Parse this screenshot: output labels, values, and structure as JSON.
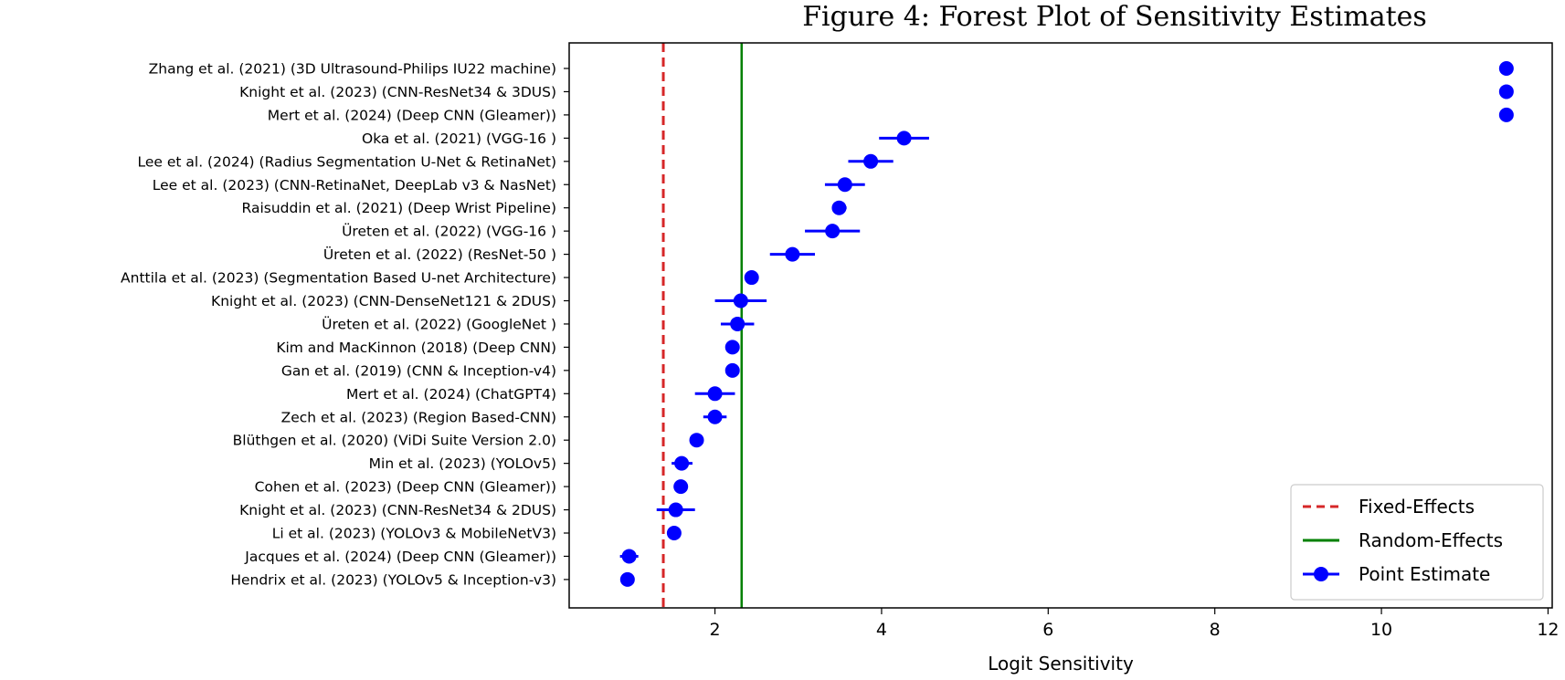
{
  "chart_data": {
    "type": "scatter",
    "title": "Figure 4: Forest Plot of Sensitivity Estimates",
    "xlabel": "Logit Sensitivity",
    "ylabel": "",
    "xlim": [
      0.25,
      12.05
    ],
    "xticks": [
      2,
      4,
      6,
      8,
      10,
      12
    ],
    "grid": false,
    "legend_position": "lower-right",
    "colors": {
      "points": "#0000ff",
      "fixed": "#d62728",
      "random": "#008000"
    },
    "fixed_effect": 1.38,
    "random_effect": 2.32,
    "legend": [
      {
        "label": "Fixed-Effects",
        "kind": "dashed-line"
      },
      {
        "label": "Random-Effects",
        "kind": "solid-line"
      },
      {
        "label": "Point Estimate",
        "kind": "point-with-errorbar"
      }
    ],
    "studies": [
      {
        "label": "Zhang et al. (2021) (3D Ultrasound-Philips IU22 machine)",
        "estimate": 11.5,
        "lower": 11.5,
        "upper": 11.5
      },
      {
        "label": "Knight et al. (2023) (CNN-ResNet34 & 3DUS)",
        "estimate": 11.5,
        "lower": 11.5,
        "upper": 11.5
      },
      {
        "label": "Mert et al. (2024) (Deep CNN (Gleamer))",
        "estimate": 11.5,
        "lower": 11.5,
        "upper": 11.5
      },
      {
        "label": "Oka et al. (2021) (VGG-16  )",
        "estimate": 4.27,
        "lower": 3.97,
        "upper": 4.57
      },
      {
        "label": "Lee et al. (2024) (Radius Segmentation U-Net & RetinaNet)",
        "estimate": 3.87,
        "lower": 3.6,
        "upper": 4.14
      },
      {
        "label": "Lee et al. (2023) (CNN-RetinaNet, DeepLab v3 & NasNet)",
        "estimate": 3.56,
        "lower": 3.32,
        "upper": 3.8
      },
      {
        "label": "Raisuddin et al. (2021) (Deep Wrist Pipeline)",
        "estimate": 3.49,
        "lower": 3.41,
        "upper": 3.58
      },
      {
        "label": "Üreten et al. (2022) (VGG-16  )",
        "estimate": 3.41,
        "lower": 3.08,
        "upper": 3.74
      },
      {
        "label": "Üreten et al. (2022) (ResNet-50 )",
        "estimate": 2.93,
        "lower": 2.66,
        "upper": 3.2
      },
      {
        "label": "Anttila et al. (2023) (Segmentation Based U-net Architecture)",
        "estimate": 2.44,
        "lower": 2.44,
        "upper": 2.44
      },
      {
        "label": "Knight et al. (2023) (CNN-DenseNet121 & 2DUS)",
        "estimate": 2.31,
        "lower": 2.0,
        "upper": 2.62
      },
      {
        "label": "Üreten et al. (2022) (GoogleNet )",
        "estimate": 2.27,
        "lower": 2.07,
        "upper": 2.47
      },
      {
        "label": "Kim and MacKinnon (2018) (Deep CNN)",
        "estimate": 2.21,
        "lower": 2.21,
        "upper": 2.21
      },
      {
        "label": "Gan et al. (2019) (CNN & Inception-v4)",
        "estimate": 2.21,
        "lower": 2.21,
        "upper": 2.21
      },
      {
        "label": "Mert et al. (2024) (ChatGPT4)",
        "estimate": 2.0,
        "lower": 1.76,
        "upper": 2.24
      },
      {
        "label": "Zech et al. (2023) (Region Based-CNN)",
        "estimate": 2.0,
        "lower": 1.86,
        "upper": 2.14
      },
      {
        "label": "Blüthgen et al. (2020) (ViDi Suite Version 2.0)",
        "estimate": 1.78,
        "lower": 1.7,
        "upper": 1.86
      },
      {
        "label": "Min et al. (2023) (YOLOv5)",
        "estimate": 1.6,
        "lower": 1.48,
        "upper": 1.73
      },
      {
        "label": "Cohen et al. (2023) (Deep CNN (Gleamer))",
        "estimate": 1.59,
        "lower": 1.52,
        "upper": 1.66
      },
      {
        "label": "Knight et al. (2023) (CNN-ResNet34 & 2DUS)",
        "estimate": 1.53,
        "lower": 1.3,
        "upper": 1.76
      },
      {
        "label": "Li et al. (2023) (YOLOv3 & MobileNetV3)",
        "estimate": 1.51,
        "lower": 1.44,
        "upper": 1.58
      },
      {
        "label": "Jacques et al. (2024) (Deep CNN (Gleamer))",
        "estimate": 0.97,
        "lower": 0.86,
        "upper": 1.08
      },
      {
        "label": "Hendrix et al. (2023) (YOLOv5 & Inception-v3)",
        "estimate": 0.95,
        "lower": 0.95,
        "upper": 0.95
      }
    ]
  }
}
